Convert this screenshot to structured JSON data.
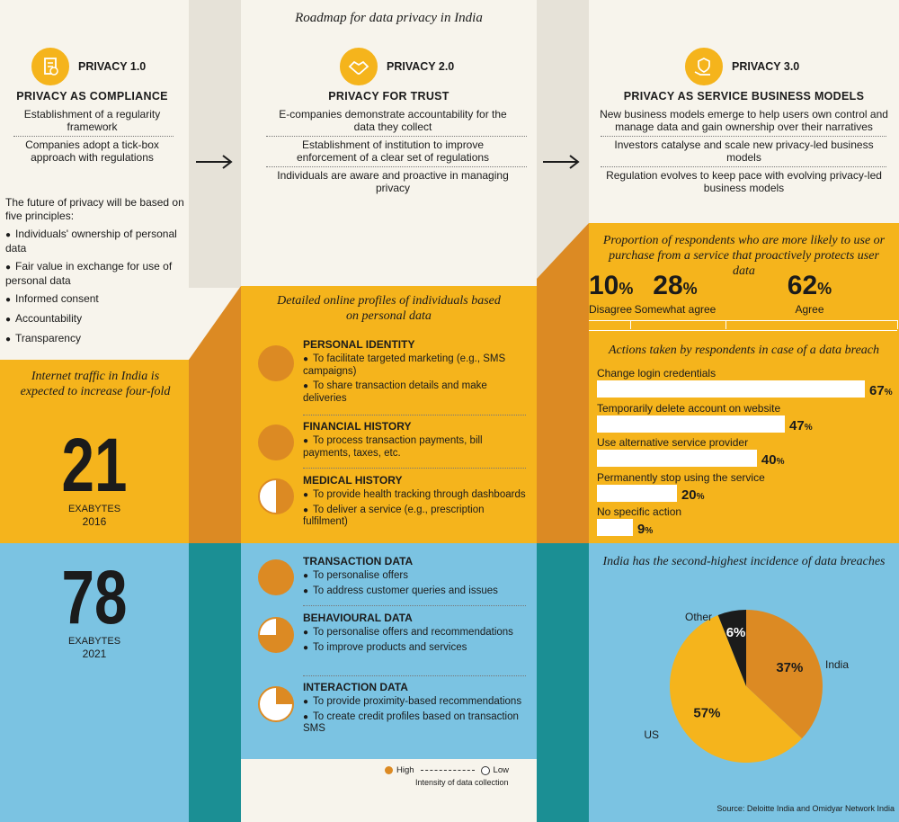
{
  "header": {
    "title": "Roadmap for data privacy in India"
  },
  "privacy": [
    {
      "label": "PRIVACY 1.0",
      "subtitle": "PRIVACY AS COMPLIANCE",
      "items": [
        "Establishment of a regularity framework",
        "Companies adopt a tick-box approach with regulations"
      ],
      "icon": "document-check-icon"
    },
    {
      "label": "PRIVACY 2.0",
      "subtitle": "PRIVACY FOR TRUST",
      "items": [
        "E-companies demonstrate accountability for the data they collect",
        "Establishment of institution to improve enforcement of a clear set of regulations",
        "Individuals are aware and proactive in managing privacy"
      ],
      "icon": "handshake-icon"
    },
    {
      "label": "PRIVACY 3.0",
      "subtitle": "PRIVACY AS SERVICE BUSINESS MODELS",
      "items": [
        "New business models emerge to help users own control and manage data and gain ownership over their narratives",
        "Investors catalyse and scale new privacy-led business models",
        "Regulation evolves to keep pace with evolving privacy-led business models"
      ],
      "icon": "hand-shield-icon"
    }
  ],
  "principles": {
    "intro": "The future of privacy will be based on five principles:",
    "items": [
      "Individuals' ownership of personal data",
      "Fair value in exchange for use of personal data",
      "Informed consent",
      "Accountability",
      "Transparency"
    ]
  },
  "traffic": {
    "title": "Internet traffic in India is expected to increase four-fold",
    "v2016": {
      "value": "21",
      "unit": "EXABYTES",
      "year": "2016"
    },
    "v2021": {
      "value": "78",
      "unit": "EXABYTES",
      "year": "2021"
    }
  },
  "profiles": {
    "title": "Detailed online profiles of individuals based on personal data",
    "items": [
      {
        "name": "PERSONAL IDENTITY",
        "lines": [
          "To facilitate targeted marketing (e.g., SMS campaigns)",
          "To share transaction details and make deliveries"
        ],
        "intensity": 1
      },
      {
        "name": "FINANCIAL HISTORY",
        "lines": [
          "To process transaction payments, bill payments, taxes, etc."
        ],
        "intensity": 1
      },
      {
        "name": "MEDICAL HISTORY",
        "lines": [
          "To provide health tracking through dashboards",
          "To deliver a service (e.g., prescription fulfilment)"
        ],
        "intensity": 0.5
      },
      {
        "name": "TRANSACTION DATA",
        "lines": [
          "To personalise offers",
          "To address customer queries and issues"
        ],
        "intensity": 1
      },
      {
        "name": "BEHAVIOURAL DATA",
        "lines": [
          "To personalise offers and recommendations",
          "To improve products and services"
        ],
        "intensity": 0.75
      },
      {
        "name": "INTERACTION DATA",
        "lines": [
          "To provide proximity-based recommendations",
          "To create credit profiles based on transaction SMS"
        ],
        "intensity": 0.25
      }
    ],
    "legend": {
      "high": "High",
      "low": "Low",
      "caption": "Intensity of data collection"
    }
  },
  "respondents": {
    "title": "Proportion of respondents who are more likely to use or purchase from a service that proactively protects user data",
    "values": [
      {
        "pct": "10",
        "label": "Disagree"
      },
      {
        "pct": "28",
        "label": "Somewhat agree"
      },
      {
        "pct": "62",
        "label": "Agree"
      }
    ]
  },
  "actions": {
    "title": "Actions taken by respondents in case of a data breach",
    "items": [
      {
        "label": "Change login credentials",
        "value": 67
      },
      {
        "label": "Temporarily delete account on website",
        "value": 47
      },
      {
        "label": "Use alternative service provider",
        "value": 40
      },
      {
        "label": "Permanently stop using the service",
        "value": 20
      },
      {
        "label": "No specific action",
        "value": 9
      }
    ]
  },
  "breaches": {
    "title": "India has the second-highest incidence of data breaches",
    "slices": [
      {
        "label": "India",
        "value": 37,
        "color": "#dc8a23"
      },
      {
        "label": "US",
        "value": 57,
        "color": "#f5b41c"
      },
      {
        "label": "Other",
        "value": 6,
        "color": "#1b1b1b"
      }
    ]
  },
  "source": "Source: Deloitte India and Omidyar Network India",
  "colors": {
    "orange": "#dc8a23",
    "yellow": "#f5b41c",
    "blue": "#7bc3e2",
    "teal": "#1b8f94",
    "beige": "#f7f4ec",
    "grey": "#e6e2d8"
  }
}
